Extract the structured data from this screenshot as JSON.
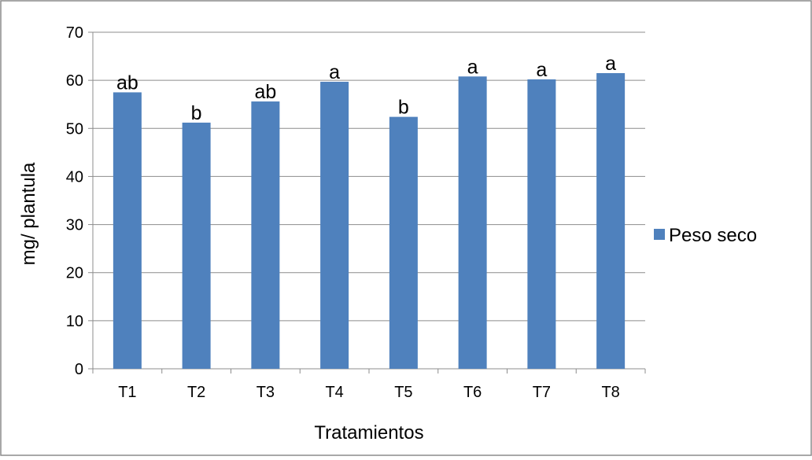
{
  "chart_data": {
    "type": "bar",
    "title": "",
    "xlabel": "Tratamientos",
    "ylabel": "mg/ plantula",
    "ylim": [
      0,
      70
    ],
    "yticks": [
      0,
      10,
      20,
      30,
      40,
      50,
      60,
      70
    ],
    "grid": true,
    "legend_position": "right",
    "categories": [
      "T1",
      "T2",
      "T3",
      "T4",
      "T5",
      "T6",
      "T7",
      "T8"
    ],
    "series": [
      {
        "name": "Peso seco",
        "color": "#4F81BD",
        "values": [
          57.5,
          51.2,
          55.6,
          59.7,
          52.4,
          60.8,
          60.2,
          61.5
        ],
        "labels": [
          "ab",
          "b",
          "ab",
          "a",
          "b",
          "a",
          "a",
          "a"
        ]
      }
    ]
  }
}
